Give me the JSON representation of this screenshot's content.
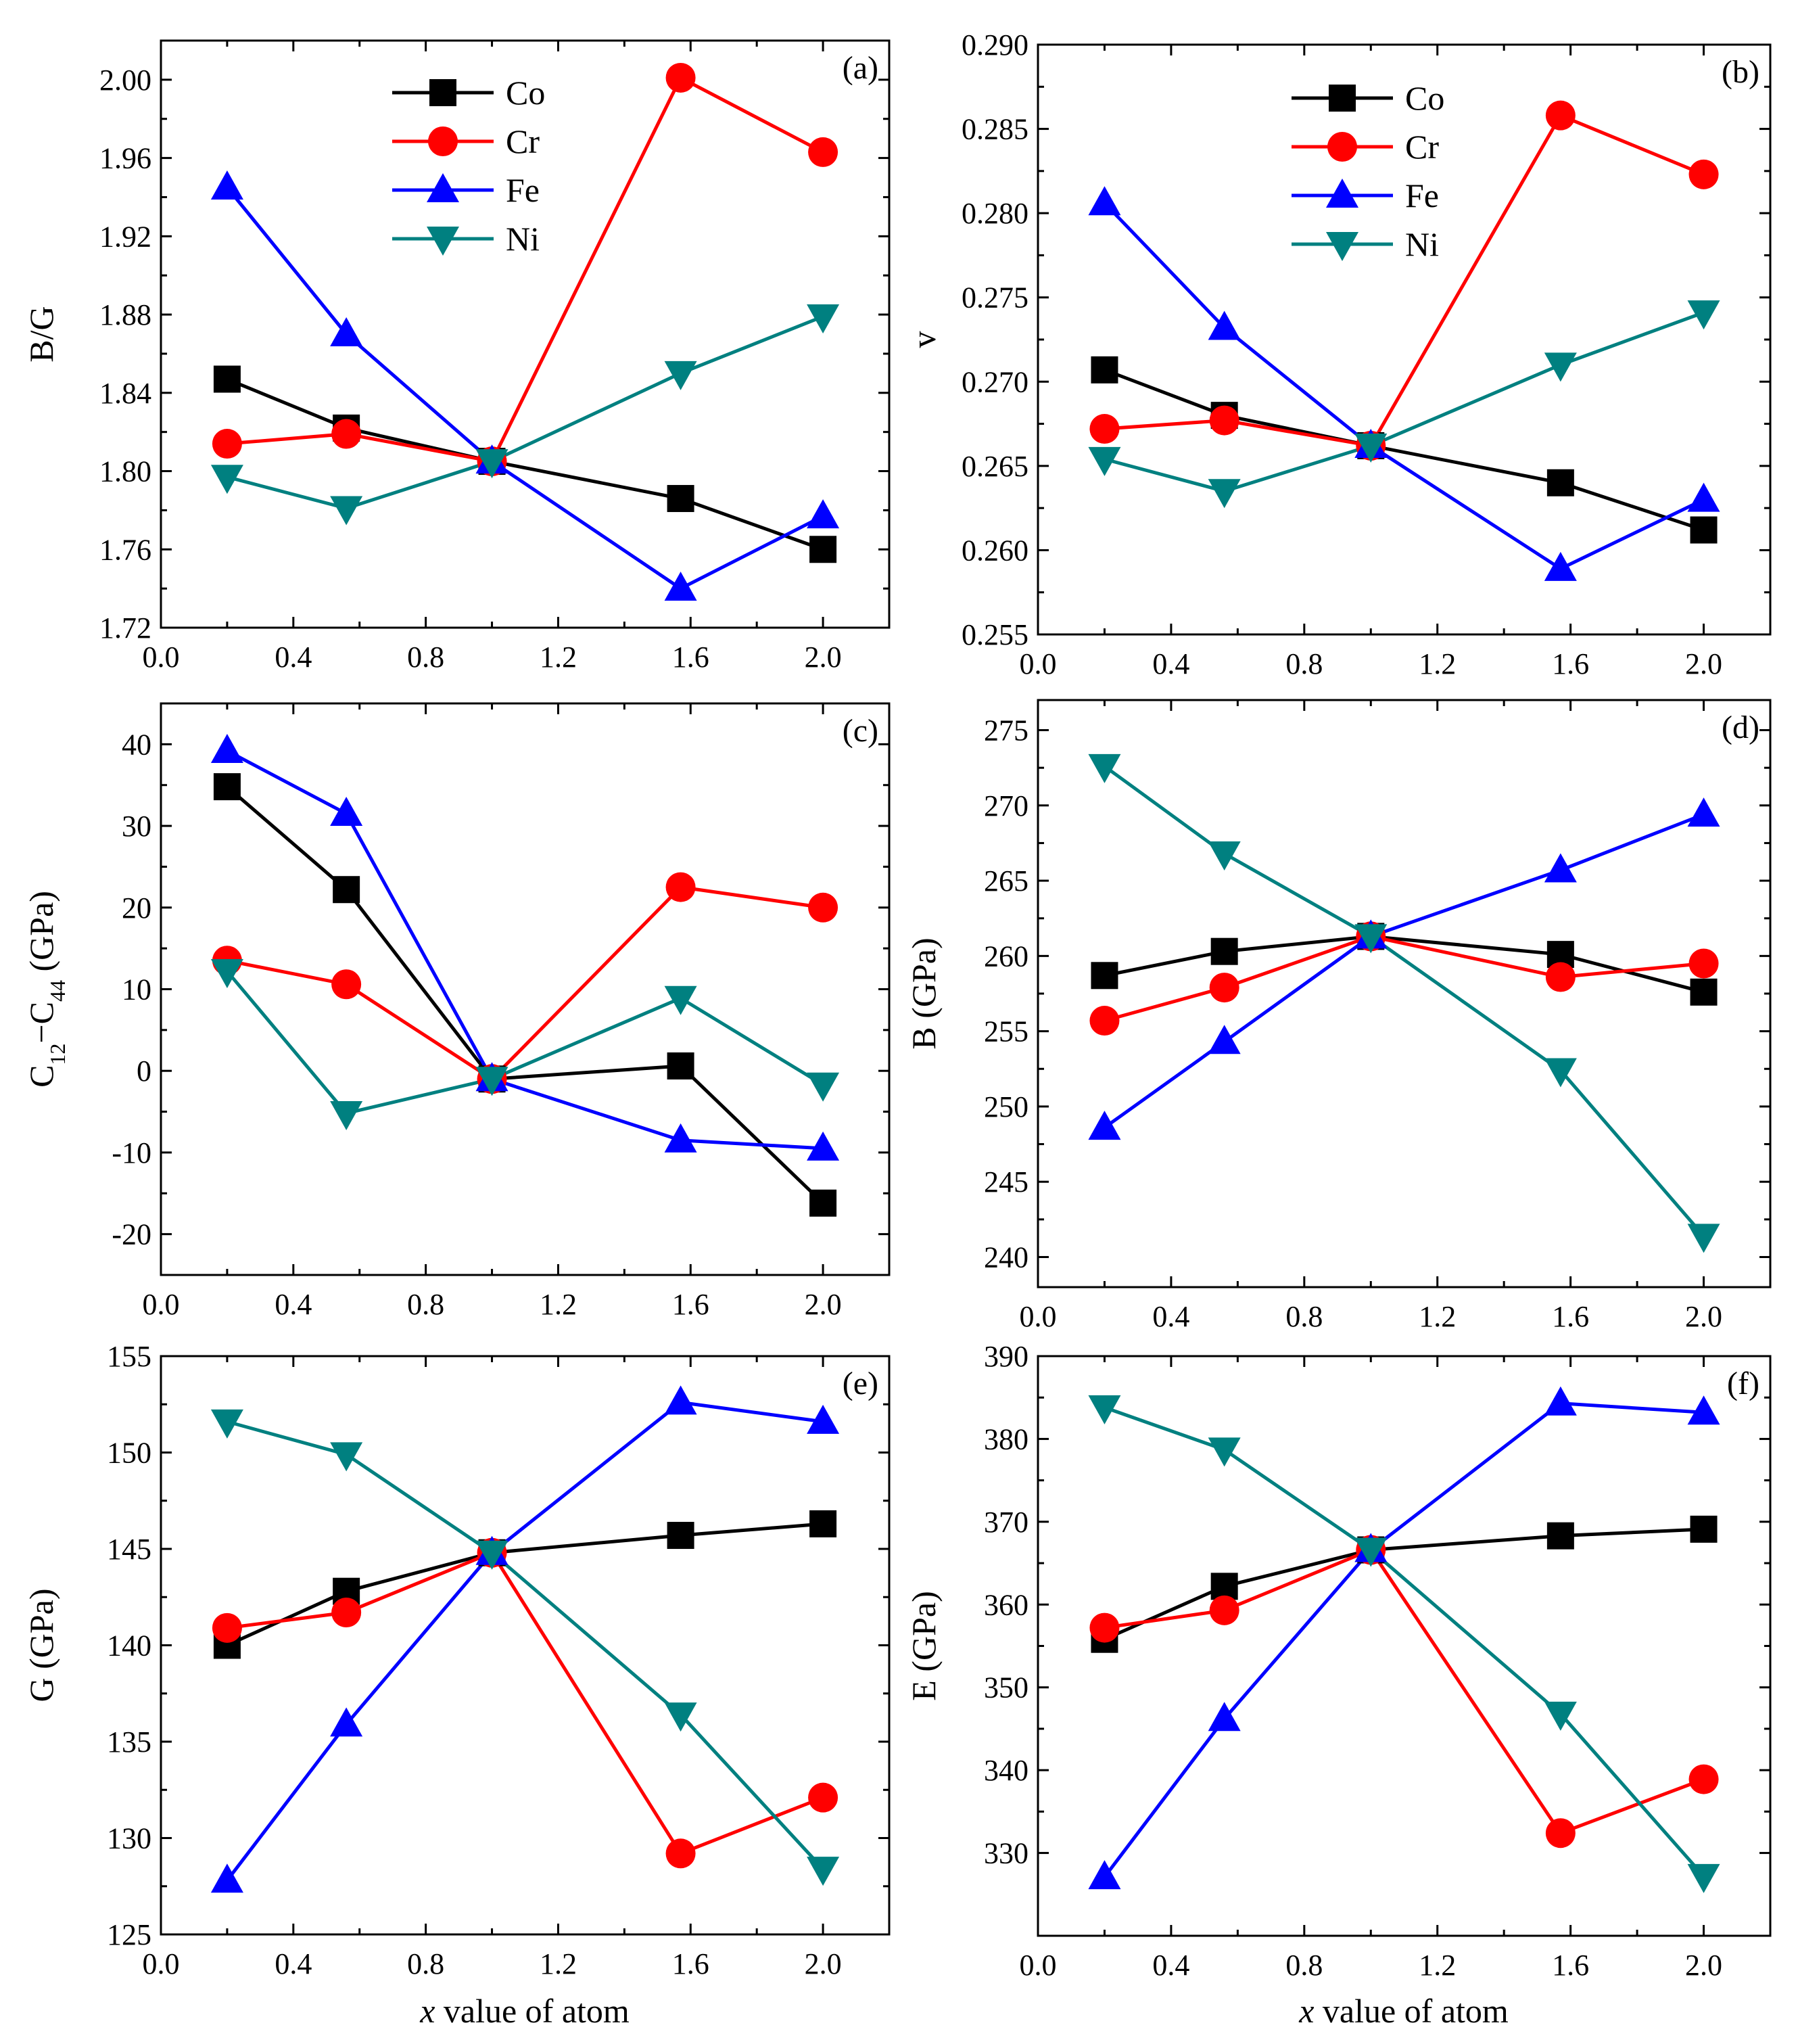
{
  "figure": {
    "xlabel_italic": "x",
    "xlabel_rest": " value of atom",
    "colors": {
      "Co": "#000000",
      "Cr": "#ff0000",
      "Fe": "#0000ff",
      "Ni": "#008080"
    },
    "markers": {
      "Co": "square",
      "Cr": "circle",
      "Fe": "triangle-up",
      "Ni": "triangle-down"
    }
  },
  "chart_data": [
    {
      "type": "line",
      "panel_label": "(a)",
      "ylabel": "B/G",
      "xlim": [
        0.0,
        2.2
      ],
      "ylim": [
        1.72,
        2.02
      ],
      "xticks": [
        "0.0",
        "0.4",
        "0.8",
        "1.2",
        "1.6",
        "2.0"
      ],
      "yticks": [
        "1.72",
        "1.76",
        "1.80",
        "1.84",
        "1.88",
        "1.92",
        "1.96",
        "2.00"
      ],
      "legend": [
        "Co",
        "Cr",
        "Fe",
        "Ni"
      ],
      "x": [
        0.2,
        0.56,
        1.0,
        1.57,
        2.0
      ],
      "series": [
        {
          "name": "Co",
          "values": [
            1.847,
            1.822,
            1.805,
            1.786,
            1.76
          ]
        },
        {
          "name": "Cr",
          "values": [
            1.814,
            1.819,
            1.805,
            2.001,
            1.963
          ]
        },
        {
          "name": "Fe",
          "values": [
            1.945,
            1.87,
            1.805,
            1.74,
            1.777
          ]
        },
        {
          "name": "Ni",
          "values": [
            1.797,
            1.781,
            1.805,
            1.85,
            1.879
          ]
        }
      ]
    },
    {
      "type": "line",
      "panel_label": "(b)",
      "ylabel": "v",
      "xlim": [
        0.0,
        2.2
      ],
      "ylim": [
        0.255,
        0.29
      ],
      "xticks": [
        "0.0",
        "0.4",
        "0.8",
        "1.2",
        "1.6",
        "2.0"
      ],
      "yticks": [
        "0.255",
        "0.260",
        "0.265",
        "0.270",
        "0.275",
        "0.280",
        "0.285",
        "0.290"
      ],
      "legend": [
        "Co",
        "Cr",
        "Fe",
        "Ni"
      ],
      "x": [
        0.2,
        0.56,
        1.0,
        1.57,
        2.0
      ],
      "series": [
        {
          "name": "Co",
          "values": [
            0.2707,
            0.268,
            0.2662,
            0.264,
            0.2612
          ]
        },
        {
          "name": "Cr",
          "values": [
            0.2672,
            0.2677,
            0.2662,
            0.2858,
            0.2823
          ]
        },
        {
          "name": "Fe",
          "values": [
            0.2806,
            0.2732,
            0.2662,
            0.2589,
            0.263
          ]
        },
        {
          "name": "Ni",
          "values": [
            0.2654,
            0.2635,
            0.2662,
            0.271,
            0.2741
          ]
        }
      ]
    },
    {
      "type": "line",
      "panel_label": "(c)",
      "ylabel_parts": [
        "C",
        "12",
        "−C",
        "44",
        " (GPa)"
      ],
      "xlim": [
        0.0,
        2.2
      ],
      "ylim": [
        -25,
        45
      ],
      "xticks": [
        "0.0",
        "0.4",
        "0.8",
        "1.2",
        "1.6",
        "2.0"
      ],
      "yticks": [
        "-20",
        "-10",
        "0",
        "10",
        "20",
        "30",
        "40"
      ],
      "x": [
        0.2,
        0.56,
        1.0,
        1.57,
        2.0
      ],
      "series": [
        {
          "name": "Co",
          "values": [
            34.8,
            22.2,
            -1.0,
            0.6,
            -16.2
          ]
        },
        {
          "name": "Cr",
          "values": [
            13.5,
            10.6,
            -1.0,
            22.5,
            20.0
          ]
        },
        {
          "name": "Fe",
          "values": [
            39.2,
            31.5,
            -1.0,
            -8.5,
            -9.5
          ]
        },
        {
          "name": "Ni",
          "values": [
            12.2,
            -5.2,
            -1.0,
            8.9,
            -1.7
          ]
        }
      ]
    },
    {
      "type": "line",
      "panel_label": "(d)",
      "ylabel": "B (GPa)",
      "xlim": [
        0.0,
        2.2
      ],
      "ylim": [
        238,
        277
      ],
      "xticks": [
        "0.0",
        "0.4",
        "0.8",
        "1.2",
        "1.6",
        "2.0"
      ],
      "yticks": [
        "240",
        "245",
        "250",
        "255",
        "260",
        "265",
        "270",
        "275"
      ],
      "x": [
        0.2,
        0.56,
        1.0,
        1.57,
        2.0
      ],
      "series": [
        {
          "name": "Co",
          "values": [
            258.7,
            260.3,
            261.3,
            260.1,
            257.6
          ]
        },
        {
          "name": "Cr",
          "values": [
            255.7,
            257.9,
            261.3,
            258.6,
            259.5
          ]
        },
        {
          "name": "Fe",
          "values": [
            248.6,
            254.3,
            261.3,
            265.7,
            269.4
          ]
        },
        {
          "name": "Ni",
          "values": [
            272.6,
            266.8,
            261.3,
            252.4,
            241.4
          ]
        }
      ]
    },
    {
      "type": "line",
      "panel_label": "(e)",
      "ylabel": "G (GPa)",
      "xlim": [
        0.0,
        2.2
      ],
      "ylim": [
        125,
        155
      ],
      "xticks": [
        "0.0",
        "0.4",
        "0.8",
        "1.2",
        "1.6",
        "2.0"
      ],
      "yticks": [
        "125",
        "130",
        "135",
        "140",
        "145",
        "150",
        "155"
      ],
      "x": [
        0.2,
        0.56,
        1.0,
        1.57,
        2.0
      ],
      "series": [
        {
          "name": "Co",
          "values": [
            140.0,
            142.8,
            144.8,
            145.7,
            146.3
          ]
        },
        {
          "name": "Cr",
          "values": [
            140.9,
            141.7,
            144.8,
            129.2,
            132.1
          ]
        },
        {
          "name": "Fe",
          "values": [
            127.8,
            135.9,
            144.8,
            152.6,
            151.6
          ]
        },
        {
          "name": "Ni",
          "values": [
            151.6,
            149.9,
            144.8,
            136.4,
            128.4
          ]
        }
      ]
    },
    {
      "type": "line",
      "panel_label": "(f)",
      "ylabel": "E (GPa)",
      "xlim": [
        0.0,
        2.2
      ],
      "ylim": [
        320,
        390
      ],
      "xticks": [
        "0.0",
        "0.4",
        "0.8",
        "1.2",
        "1.6",
        "2.0"
      ],
      "yticks": [
        "330",
        "340",
        "350",
        "360",
        "370",
        "380",
        "390"
      ],
      "x": [
        0.2,
        0.56,
        1.0,
        1.57,
        2.0
      ],
      "series": [
        {
          "name": "Co",
          "values": [
            355.8,
            362.2,
            366.6,
            368.3,
            369.1
          ]
        },
        {
          "name": "Cr",
          "values": [
            357.2,
            359.3,
            366.6,
            332.4,
            338.9
          ]
        },
        {
          "name": "Fe",
          "values": [
            327.1,
            346.2,
            366.6,
            384.3,
            383.2
          ]
        },
        {
          "name": "Ni",
          "values": [
            383.8,
            378.7,
            366.6,
            346.8,
            327.2
          ]
        }
      ]
    }
  ]
}
